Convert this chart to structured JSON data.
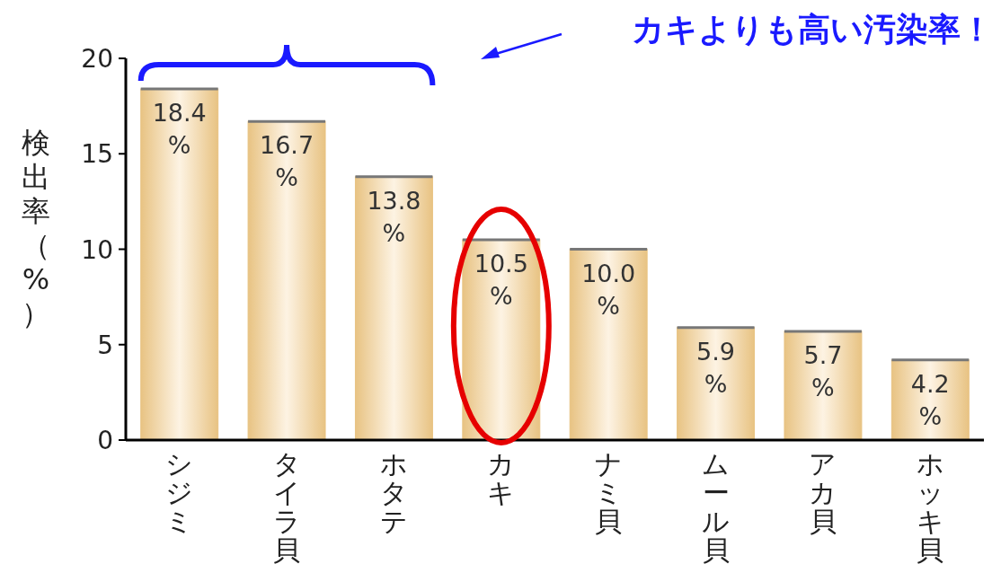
{
  "chart_data": {
    "type": "bar",
    "categories": [
      "シジミ",
      "タイラ貝",
      "ホタテ",
      "カキ",
      "ナミ貝",
      "ムール貝",
      "アカ貝",
      "ホッキ貝"
    ],
    "values": [
      18.4,
      16.7,
      13.8,
      10.5,
      10.0,
      5.9,
      5.7,
      4.2
    ],
    "value_labels": [
      "18.4 %",
      "16.7 %",
      "13.8 %",
      "10.5 %",
      "10.0 %",
      "5.9 %",
      "5.7 %",
      "4.2 %"
    ],
    "color": "#e8c383",
    "ylabel": "検出率（%）",
    "ylim": [
      0,
      20
    ],
    "yticks": [
      0,
      5,
      10,
      15,
      20
    ],
    "annotations": [
      "カキよりも高い汚染率！"
    ],
    "grid": false
  }
}
